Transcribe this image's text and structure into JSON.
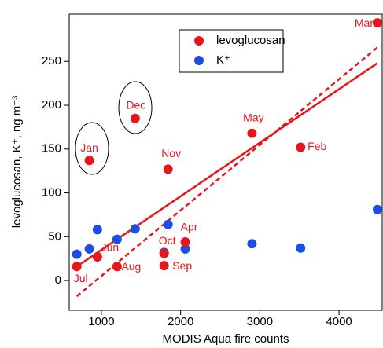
{
  "chart_data": {
    "type": "scatter",
    "xlabel": "MODIS Aqua fire counts",
    "ylabel": "levoglucosan, K⁺, ng m⁻³",
    "xlim": [
      594,
      4545
    ],
    "ylim": [
      -34,
      304
    ],
    "xticks": [
      1000,
      2000,
      3000,
      4000
    ],
    "yticks": [
      0,
      50,
      100,
      150,
      200,
      250
    ],
    "legend": "top-center",
    "point_labels": [
      "Jul",
      "Jan",
      "Jun",
      "Aug",
      "Dec",
      "Nov",
      "Oct",
      "Sep",
      "Apr",
      "May",
      "Feb",
      "Mar"
    ],
    "series": [
      {
        "name": "levoglucosan",
        "color": "#e8151b",
        "x": [
          690,
          848,
          950,
          1198,
          1426,
          1842,
          1792,
          1792,
          2059,
          2901,
          3515,
          4485
        ],
        "values": [
          16,
          137,
          27,
          16,
          185,
          127,
          31,
          17,
          44,
          168,
          152,
          294
        ]
      },
      {
        "name": "K⁺",
        "color": "#1a4fe6",
        "x": [
          690,
          848,
          950,
          1198,
          1426,
          1842,
          1792,
          2059,
          2901,
          3515,
          4485
        ],
        "values": [
          30,
          36,
          58,
          47,
          59,
          64,
          32,
          36,
          42,
          37,
          81
        ]
      }
    ],
    "lines": [
      {
        "style": "solid",
        "color": "#e8151b",
        "x": [
          690,
          4485
        ],
        "values": [
          16,
          248
        ]
      },
      {
        "style": "dashed",
        "color": "#e8151b",
        "x": [
          690,
          4485
        ],
        "values": [
          -18,
          266
        ]
      }
    ]
  }
}
